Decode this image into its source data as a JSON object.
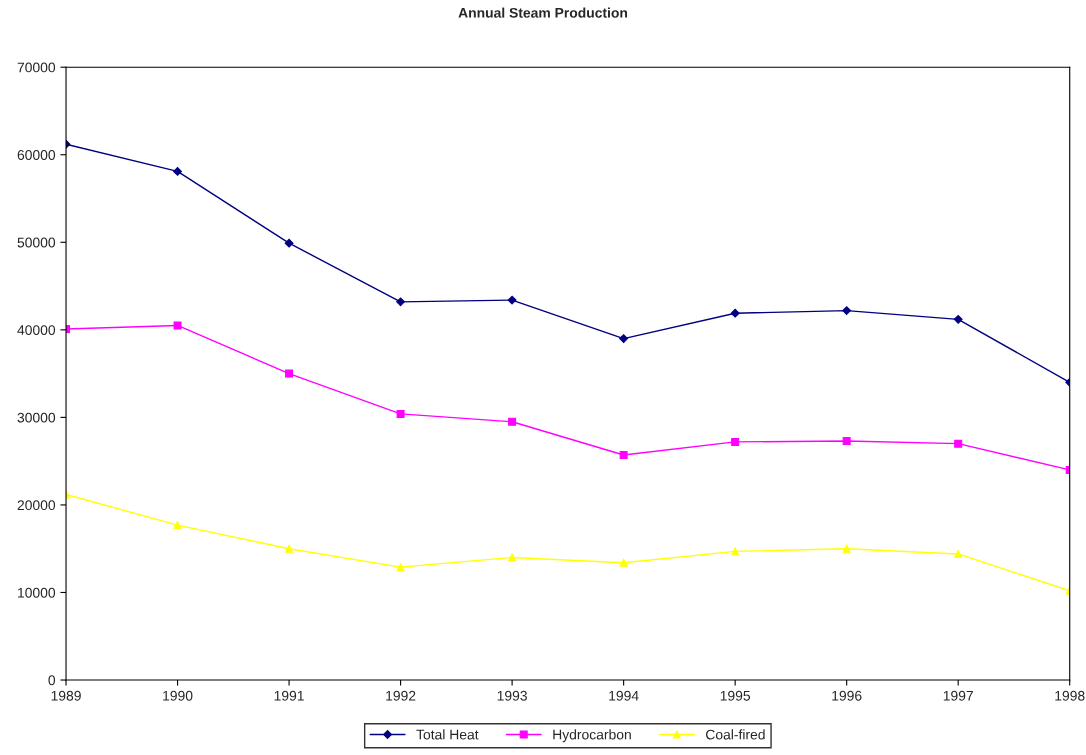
{
  "chart_data": {
    "type": "line",
    "title": "Annual Steam Production",
    "x": [
      1989,
      1990,
      1991,
      1992,
      1993,
      1994,
      1995,
      1996,
      1997,
      1998
    ],
    "series": [
      {
        "name": "Total Heat",
        "color": "#000080",
        "marker": "diamond",
        "values": [
          61200,
          58100,
          49900,
          43200,
          43400,
          39000,
          41900,
          42200,
          41200,
          34000
        ]
      },
      {
        "name": "Hydrocarbon",
        "color": "#ff00ff",
        "marker": "square",
        "values": [
          40100,
          40500,
          35000,
          30400,
          29500,
          25700,
          27200,
          27300,
          27000,
          24000
        ]
      },
      {
        "name": "Coal-fired",
        "color": "#ffff00",
        "marker": "triangle",
        "values": [
          21200,
          17700,
          15000,
          12900,
          14000,
          13400,
          14700,
          15000,
          14400,
          10200
        ]
      }
    ],
    "xlim": [
      1989,
      1998
    ],
    "xticks": [
      1989,
      1990,
      1991,
      1992,
      1993,
      1994,
      1995,
      1996,
      1997,
      1998
    ],
    "ylim": [
      0,
      70000
    ],
    "yticks": [
      0,
      10000,
      20000,
      30000,
      40000,
      50000,
      60000,
      70000
    ],
    "grid": false,
    "legend": "bottom"
  }
}
